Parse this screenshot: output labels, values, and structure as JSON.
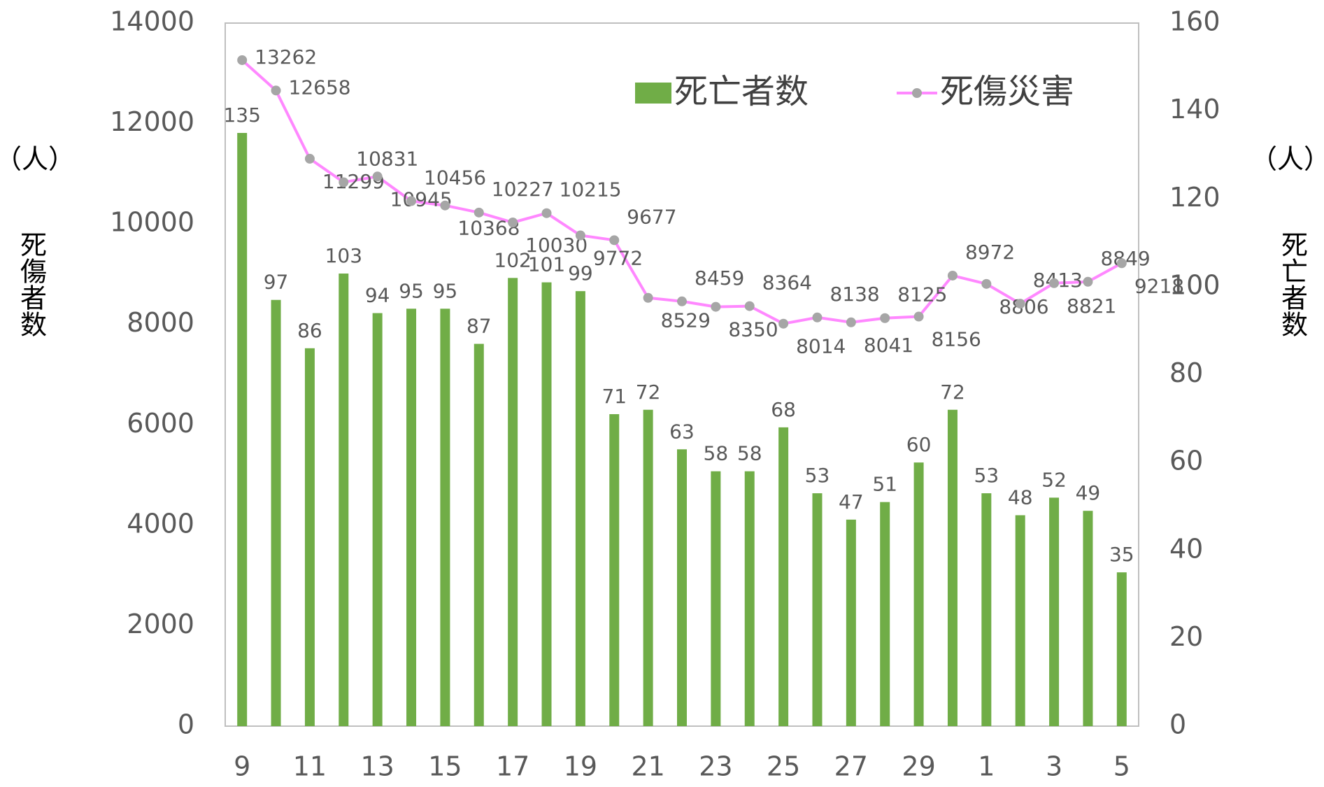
{
  "chart_data": {
    "type": "bar_line",
    "ylabel_unit": "（人）",
    "ylabel": "死傷者数",
    "y2label_unit": "（人）",
    "y2label": "死亡者数",
    "categories": [
      9,
      null,
      11,
      null,
      13,
      null,
      15,
      null,
      17,
      null,
      19,
      null,
      21,
      null,
      23,
      null,
      25,
      null,
      27,
      null,
      29,
      null,
      1,
      null,
      3,
      null,
      5
    ],
    "series": [
      {
        "name": "死亡者数",
        "type": "bar",
        "axis": "y2",
        "color": "#70ad47",
        "values": [
          135,
          97,
          86,
          103,
          94,
          95,
          95,
          87,
          102,
          101,
          99,
          71,
          72,
          63,
          58,
          58,
          68,
          53,
          47,
          51,
          60,
          72,
          53,
          48,
          52,
          49,
          35
        ]
      },
      {
        "name": "死傷災害",
        "type": "line",
        "axis": "y",
        "color": "#ff88ff",
        "marker_color": "#a6a6a6",
        "values": [
          13262,
          12658,
          11299,
          10831,
          10945,
          10456,
          10368,
          10227,
          10030,
          10215,
          9772,
          9677,
          8529,
          8459,
          8350,
          8364,
          8014,
          8138,
          8041,
          8125,
          8156,
          8972,
          8806,
          8413,
          8821,
          8849,
          9218
        ]
      }
    ],
    "ylim": [
      0,
      14000
    ],
    "yticks": [
      0,
      2000,
      4000,
      6000,
      8000,
      10000,
      12000,
      14000
    ],
    "y2lim": [
      0,
      160
    ],
    "y2ticks": [
      0,
      20,
      40,
      60,
      80,
      100,
      120,
      140,
      160
    ],
    "legend": "top"
  }
}
